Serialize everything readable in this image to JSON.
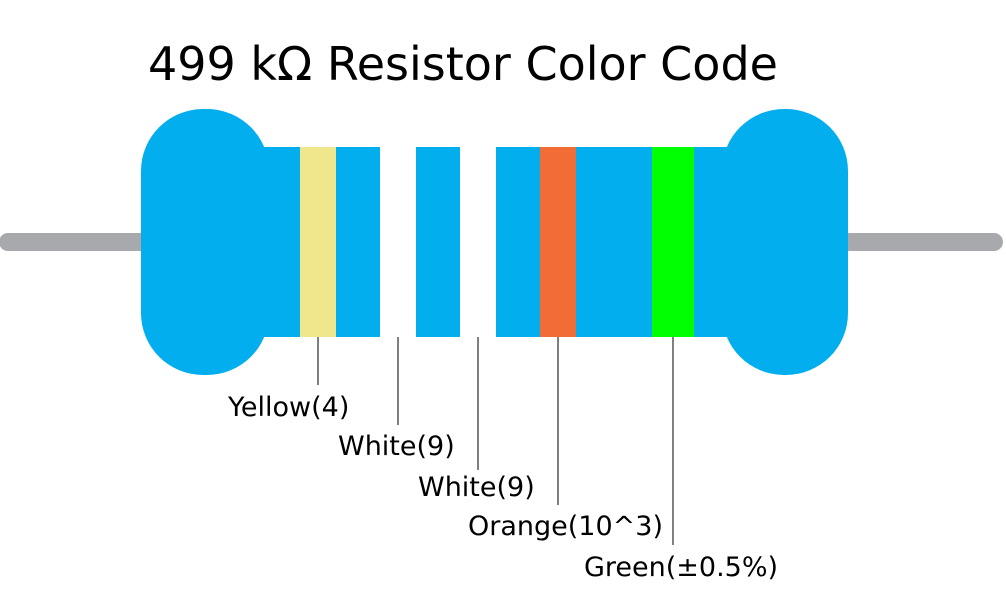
{
  "title": "499 kΩ Resistor Color Code",
  "colors": {
    "body": "#03aeef",
    "lead": "#a7a9ac",
    "background": "#ffffff"
  },
  "bands": [
    {
      "name": "Yellow",
      "value_label": "(4)",
      "label": "Yellow(4)",
      "color": "#f0e68c"
    },
    {
      "name": "White",
      "value_label": "(9)",
      "label": "White(9)",
      "color": "#ffffff"
    },
    {
      "name": "White",
      "value_label": "(9)",
      "label": "White(9)",
      "color": "#ffffff"
    },
    {
      "name": "Orange",
      "value_label": "(10^3)",
      "label": "Orange(10^3)",
      "color": "#f26c35"
    },
    {
      "name": "Green",
      "value_label": "(±0.5%)",
      "label": "Green(±0.5%)",
      "color": "#00ff00"
    }
  ]
}
